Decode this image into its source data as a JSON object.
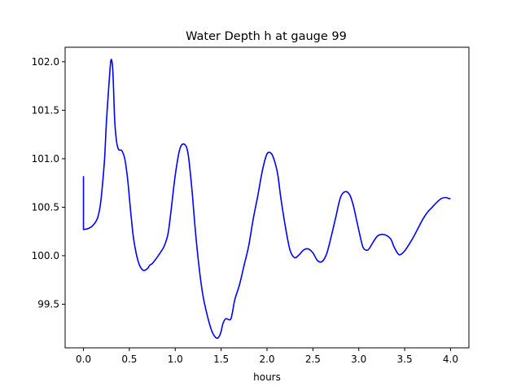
{
  "chart_data": {
    "type": "line",
    "title": "Water Depth h at gauge 99",
    "xlabel": "hours",
    "ylabel": "",
    "xlim": [
      -0.2,
      4.2
    ],
    "ylim": [
      99.05,
      102.15
    ],
    "xticks": [
      0.0,
      0.5,
      1.0,
      1.5,
      2.0,
      2.5,
      3.0,
      3.5,
      4.0
    ],
    "xtick_labels": [
      "0.0",
      "0.5",
      "1.0",
      "1.5",
      "2.0",
      "2.5",
      "3.0",
      "3.5",
      "4.0"
    ],
    "yticks": [
      99.5,
      100.0,
      100.5,
      101.0,
      101.5,
      102.0
    ],
    "ytick_labels": [
      "99.5",
      "100.0",
      "100.5",
      "101.0",
      "101.5",
      "102.0"
    ],
    "grid": false,
    "line_color": "#0000ff",
    "series": [
      {
        "x": [
          0.0,
          0.0,
          0.0,
          0.05,
          0.1,
          0.15,
          0.18,
          0.2,
          0.23,
          0.25,
          0.28,
          0.3,
          0.32,
          0.34,
          0.36,
          0.38,
          0.4,
          0.42,
          0.45,
          0.48,
          0.5,
          0.52,
          0.55,
          0.6,
          0.65,
          0.7,
          0.72,
          0.75,
          0.8,
          0.85,
          0.88,
          0.92,
          0.95,
          1.0,
          1.05,
          1.1,
          1.14,
          1.18,
          1.22,
          1.26,
          1.3,
          1.35,
          1.4,
          1.45,
          1.48,
          1.5,
          1.52,
          1.55,
          1.6,
          1.62,
          1.65,
          1.7,
          1.75,
          1.8,
          1.85,
          1.9,
          1.95,
          2.0,
          2.05,
          2.09,
          2.12,
          2.15,
          2.2,
          2.25,
          2.3,
          2.35,
          2.4,
          2.45,
          2.5,
          2.55,
          2.6,
          2.65,
          2.7,
          2.75,
          2.8,
          2.85,
          2.9,
          2.94,
          2.98,
          3.02,
          3.05,
          3.1,
          3.15,
          3.2,
          3.25,
          3.3,
          3.35,
          3.38,
          3.42,
          3.45,
          3.5,
          3.55,
          3.6,
          3.65,
          3.7,
          3.75,
          3.8,
          3.85,
          3.9,
          3.95,
          3.98,
          4.0
        ],
        "y": [
          100.82,
          100.27,
          100.27,
          100.28,
          100.31,
          100.38,
          100.5,
          100.66,
          101.0,
          101.38,
          101.8,
          102.02,
          101.9,
          101.4,
          101.18,
          101.1,
          101.09,
          101.08,
          101.0,
          100.8,
          100.6,
          100.4,
          100.15,
          99.93,
          99.85,
          99.87,
          99.9,
          99.92,
          99.98,
          100.05,
          100.1,
          100.22,
          100.43,
          100.83,
          101.1,
          101.15,
          101.05,
          100.7,
          100.25,
          99.88,
          99.6,
          99.38,
          99.22,
          99.15,
          99.17,
          99.22,
          99.3,
          99.35,
          99.34,
          99.4,
          99.55,
          99.7,
          99.9,
          100.1,
          100.38,
          100.62,
          100.88,
          101.05,
          101.05,
          100.95,
          100.82,
          100.6,
          100.3,
          100.06,
          99.98,
          100.01,
          100.06,
          100.07,
          100.03,
          99.95,
          99.94,
          100.02,
          100.2,
          100.4,
          100.6,
          100.66,
          100.63,
          100.52,
          100.35,
          100.18,
          100.08,
          100.06,
          100.13,
          100.2,
          100.22,
          100.21,
          100.17,
          100.1,
          100.03,
          100.01,
          100.05,
          100.12,
          100.2,
          100.29,
          100.38,
          100.45,
          100.5,
          100.55,
          100.59,
          100.6,
          100.59,
          100.59
        ]
      }
    ]
  }
}
